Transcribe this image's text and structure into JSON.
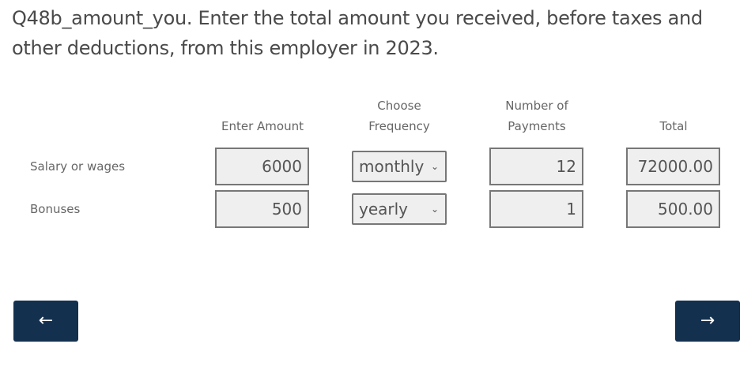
{
  "question": "Q48b_amount_you. Enter the total amount you received, before taxes and other deductions, from this employer in 2023.",
  "headers": {
    "amount": "Enter Amount",
    "frequency_line1": "Choose",
    "frequency_line2": "Frequency",
    "payments_line1": "Number of",
    "payments_line2": "Payments",
    "total": "Total"
  },
  "rows": [
    {
      "label": "Salary or wages",
      "amount": "6000",
      "frequency": "monthly",
      "payments": "12",
      "total": "72000.00"
    },
    {
      "label": "Bonuses",
      "amount": "500",
      "frequency": "yearly",
      "payments": "1",
      "total": "500.00"
    }
  ],
  "nav": {
    "back": "←",
    "next": "→"
  },
  "colors": {
    "button": "#13304f"
  }
}
